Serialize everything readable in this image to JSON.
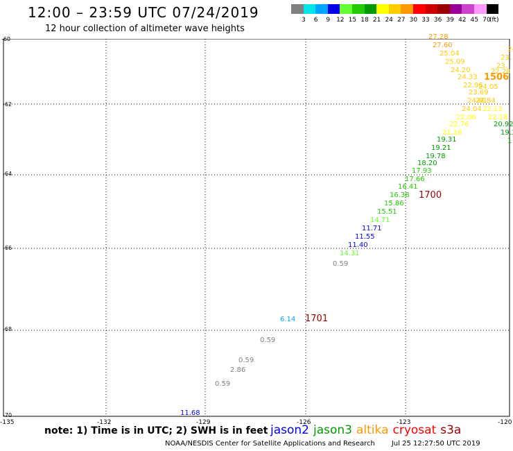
{
  "header": {
    "title": "12:00 – 23:59 UTC 07/24/2019",
    "subtitle": "12 hour collection of altimeter wave heights"
  },
  "legend": {
    "bins": [
      {
        "label": "3",
        "color": "#808080"
      },
      {
        "label": "6",
        "color": "#00e5e5"
      },
      {
        "label": "9",
        "color": "#00a5ff"
      },
      {
        "label": "12",
        "color": "#0000ee"
      },
      {
        "label": "15",
        "color": "#66ff33"
      },
      {
        "label": "18",
        "color": "#22cc00"
      },
      {
        "label": "21",
        "color": "#009900"
      },
      {
        "label": "24",
        "color": "#ffff00"
      },
      {
        "label": "27",
        "color": "#ffcc00"
      },
      {
        "label": "30",
        "color": "#ff9900"
      },
      {
        "label": "33",
        "color": "#ff0000"
      },
      {
        "label": "36",
        "color": "#cc0000"
      },
      {
        "label": "39",
        "color": "#990000"
      },
      {
        "label": "42",
        "color": "#990099"
      },
      {
        "label": "45",
        "color": "#cc44cc"
      },
      {
        "label": "70",
        "color": "#ff99ff"
      },
      {
        "label": "",
        "color": "#000000"
      }
    ],
    "unit": "(ft)"
  },
  "axes": {
    "lat_labels": [
      "-60",
      "-62",
      "-64",
      "-66",
      "-68",
      "-70"
    ],
    "lon_labels": [
      "-135",
      "-132",
      "-129",
      "-126",
      "-123",
      "-120"
    ]
  },
  "time_labels": [
    {
      "text": "1506",
      "color": "#ff9900"
    },
    {
      "text": "1700",
      "color": "#990000"
    },
    {
      "text": "1701",
      "color": "#990000"
    }
  ],
  "observations": [
    {
      "text": "27.28",
      "color": "#ff9900"
    },
    {
      "text": "27.60",
      "color": "#ff9900"
    },
    {
      "text": "25.04",
      "color": "#ffcc00"
    },
    {
      "text": "25.09",
      "color": "#ffcc00"
    },
    {
      "text": "24.20",
      "color": "#ffcc00"
    },
    {
      "text": "24.33",
      "color": "#ffcc00"
    },
    {
      "text": "22.96",
      "color": "#ffcc00"
    },
    {
      "text": "24.05",
      "color": "#ffcc00"
    },
    {
      "text": "23.69",
      "color": "#ffcc00"
    },
    {
      "text": "24.84",
      "color": "#ffcc00"
    },
    {
      "text": "24.61",
      "color": "#ffcc00"
    },
    {
      "text": "24.04",
      "color": "#ffcc00"
    },
    {
      "text": "22.13",
      "color": "#ffff00"
    },
    {
      "text": "22.06",
      "color": "#ffff00"
    },
    {
      "text": "22.18",
      "color": "#ffff00"
    },
    {
      "text": "22.76",
      "color": "#ffff00"
    },
    {
      "text": "21.16",
      "color": "#ffff00"
    },
    {
      "text": "20.92",
      "color": "#009900"
    },
    {
      "text": "19.31",
      "color": "#009900"
    },
    {
      "text": "19.21",
      "color": "#009900"
    },
    {
      "text": "19.78",
      "color": "#009900"
    },
    {
      "text": "18.20",
      "color": "#009900"
    },
    {
      "text": "17.93",
      "color": "#22cc00"
    },
    {
      "text": "17.66",
      "color": "#22cc00"
    },
    {
      "text": "16.41",
      "color": "#22cc00"
    },
    {
      "text": "16.38",
      "color": "#22cc00"
    },
    {
      "text": "15.86",
      "color": "#22cc00"
    },
    {
      "text": "15.51",
      "color": "#22cc00"
    },
    {
      "text": "14.71",
      "color": "#66ff33"
    },
    {
      "text": "11.71",
      "color": "#0000ee"
    },
    {
      "text": "11.55",
      "color": "#0000ee"
    },
    {
      "text": "11.40",
      "color": "#0000ee"
    },
    {
      "text": "14.31",
      "color": "#66ff33"
    },
    {
      "text": "0.59",
      "color": "#808080"
    },
    {
      "text": "6.14",
      "color": "#00a5ff"
    },
    {
      "text": "0.59",
      "color": "#808080"
    },
    {
      "text": "0.59",
      "color": "#808080"
    },
    {
      "text": "2.86",
      "color": "#808080"
    },
    {
      "text": "0.59",
      "color": "#808080"
    },
    {
      "text": "11.68",
      "color": "#0000ee"
    },
    {
      "text": "23.",
      "color": "#ffcc00"
    },
    {
      "text": "23.",
      "color": "#ffcc00"
    },
    {
      "text": "22.20",
      "color": "#ffcc00"
    },
    {
      "text": "24",
      "color": "#ffcc00"
    },
    {
      "text": "19.3",
      "color": "#009900"
    },
    {
      "text": "1",
      "color": "#009900"
    }
  ],
  "footer": {
    "note": "note: 1) Time is in UTC; 2) SWH is in feet",
    "satellites": [
      {
        "name": "jason2",
        "color": "#0000ee"
      },
      {
        "name": "jason3",
        "color": "#009900"
      },
      {
        "name": "altika",
        "color": "#ff9900"
      },
      {
        "name": "cryosat",
        "color": "#ff0000"
      },
      {
        "name": "s3a",
        "color": "#990000"
      }
    ],
    "credit": "NOAA/NESDIS Center for Satellite Applications and Research",
    "timestamp": "Jul 25 12:27:50 UTC 2019"
  }
}
